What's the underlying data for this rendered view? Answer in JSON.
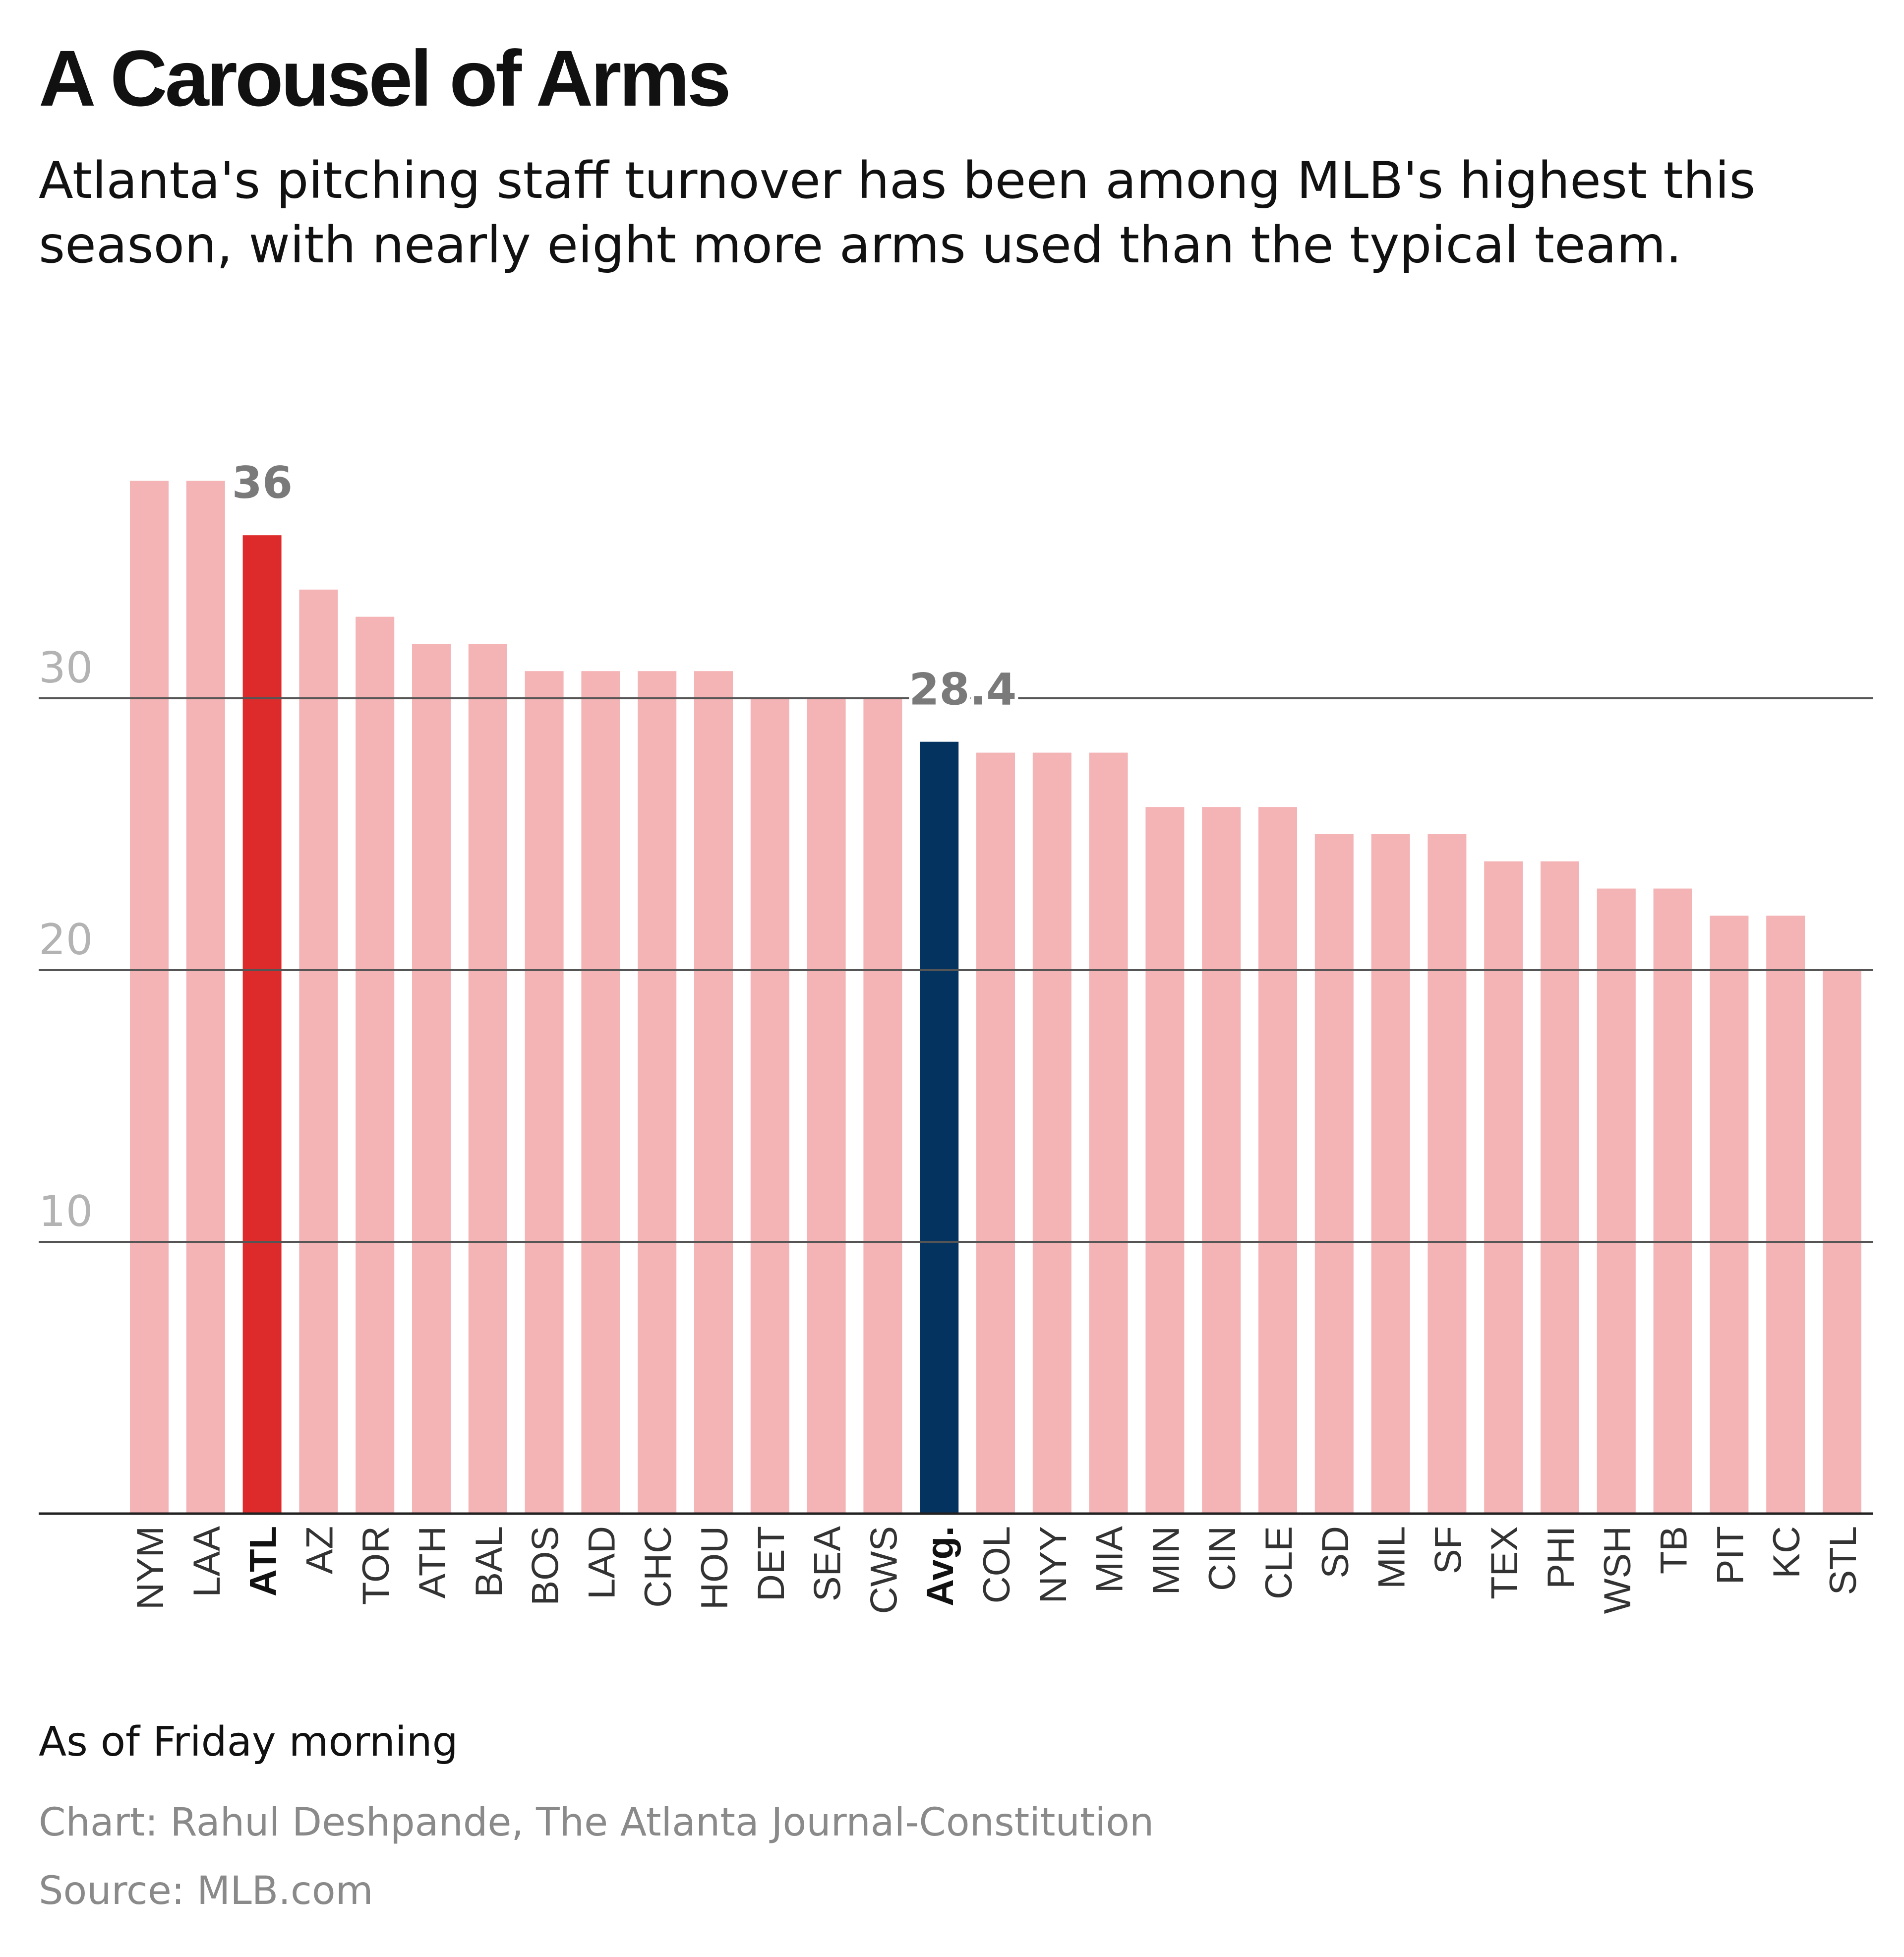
{
  "header": {
    "title": "A Carousel of Arms",
    "subtitle": "Atlanta's pitching staff turnover has been among MLB's highest this season, with nearly eight more arms used than the typical team."
  },
  "footer": {
    "note": "As of Friday morning",
    "credit": "Chart: Rahul Deshpande, The Atlanta Journal-Constitution",
    "source": "Source: MLB.com"
  },
  "colors": {
    "bar": "#f4b3b5",
    "highlight_team": "#dd2a2a",
    "average": "#04335f",
    "gridline": "#555555",
    "tick_label": "#b3b3b3",
    "data_label": "#7a7a7a"
  },
  "chart_data": {
    "type": "bar",
    "title": "A Carousel of Arms",
    "xlabel": "",
    "ylabel": "",
    "ylim": [
      0,
      38
    ],
    "yticks": [
      10,
      20,
      30
    ],
    "grid": true,
    "categories": [
      "NYM",
      "LAA",
      "ATL",
      "AZ",
      "TOR",
      "ATH",
      "BAL",
      "BOS",
      "LAD",
      "CHC",
      "HOU",
      "DET",
      "SEA",
      "CWS",
      "Avg.",
      "COL",
      "NYY",
      "MIA",
      "MIN",
      "CIN",
      "CLE",
      "SD",
      "MIL",
      "SF",
      "TEX",
      "PHI",
      "WSH",
      "TB",
      "PIT",
      "KC",
      "STL"
    ],
    "values": [
      38,
      38,
      36,
      34,
      33,
      32,
      32,
      31,
      31,
      31,
      31,
      30,
      30,
      30,
      28.4,
      28,
      28,
      28,
      26,
      26,
      26,
      25,
      25,
      25,
      24,
      24,
      23,
      23,
      22,
      22,
      20
    ],
    "highlight": [
      "ATL"
    ],
    "average_category": "Avg.",
    "annotations": [
      {
        "category": "ATL",
        "label": "36"
      },
      {
        "category": "Avg.",
        "label": "28.4"
      }
    ]
  }
}
